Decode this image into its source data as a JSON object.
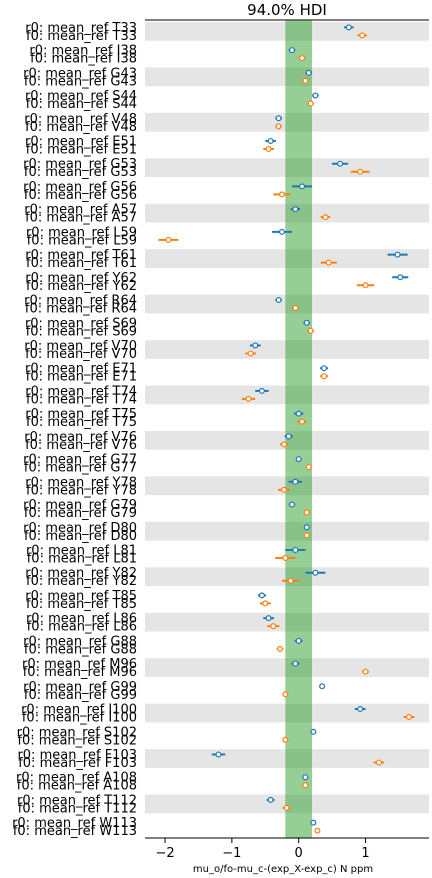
{
  "chart_data": {
    "type": "forest",
    "title": "94.0% HDI",
    "xlabel": "mu_o/fo-mu_c-(exp_X-exp_c) N ppm",
    "xlim": [
      -2.3,
      1.95
    ],
    "xticks": [
      -2,
      -1,
      0,
      1
    ],
    "rope": [
      -0.2,
      0.2
    ],
    "series": [
      {
        "name": "r0",
        "color": "#1f77b4"
      },
      {
        "name": "f0",
        "color": "#ff7f0e"
      }
    ],
    "residues": [
      {
        "name": "T33",
        "r0": [
          0.75,
          0.68,
          0.82
        ],
        "f0": [
          0.95,
          0.88,
          1.02
        ]
      },
      {
        "name": "I38",
        "r0": [
          -0.1,
          -0.15,
          -0.05
        ],
        "f0": [
          0.05,
          0.0,
          0.1
        ]
      },
      {
        "name": "G43",
        "r0": [
          0.15,
          0.1,
          0.2
        ],
        "f0": [
          0.1,
          0.05,
          0.15
        ]
      },
      {
        "name": "S44",
        "r0": [
          0.25,
          0.2,
          0.3
        ],
        "f0": [
          0.18,
          0.13,
          0.23
        ]
      },
      {
        "name": "V48",
        "r0": [
          -0.3,
          -0.35,
          -0.25
        ],
        "f0": [
          -0.3,
          -0.35,
          -0.25
        ]
      },
      {
        "name": "E51",
        "r0": [
          -0.42,
          -0.5,
          -0.34
        ],
        "f0": [
          -0.45,
          -0.53,
          -0.37
        ]
      },
      {
        "name": "G53",
        "r0": [
          0.62,
          0.5,
          0.74
        ],
        "f0": [
          0.92,
          0.78,
          1.06
        ]
      },
      {
        "name": "G56",
        "r0": [
          0.05,
          -0.1,
          0.2
        ],
        "f0": [
          -0.25,
          -0.38,
          -0.12
        ]
      },
      {
        "name": "A57",
        "r0": [
          -0.05,
          -0.12,
          0.02
        ],
        "f0": [
          0.4,
          0.33,
          0.47
        ]
      },
      {
        "name": "L59",
        "r0": [
          -0.25,
          -0.4,
          -0.1
        ],
        "f0": [
          -1.95,
          -2.1,
          -1.8
        ]
      },
      {
        "name": "T61",
        "r0": [
          1.48,
          1.33,
          1.63
        ],
        "f0": [
          0.45,
          0.33,
          0.57
        ]
      },
      {
        "name": "Y62",
        "r0": [
          1.52,
          1.4,
          1.64
        ],
        "f0": [
          1.0,
          0.87,
          1.13
        ]
      },
      {
        "name": "R64",
        "r0": [
          -0.3,
          -0.35,
          -0.25
        ],
        "f0": [
          -0.05,
          -0.1,
          0.0
        ]
      },
      {
        "name": "S69",
        "r0": [
          0.12,
          0.07,
          0.17
        ],
        "f0": [
          0.18,
          0.13,
          0.23
        ]
      },
      {
        "name": "V70",
        "r0": [
          -0.65,
          -0.73,
          -0.57
        ],
        "f0": [
          -0.72,
          -0.8,
          -0.64
        ]
      },
      {
        "name": "E71",
        "r0": [
          0.38,
          0.32,
          0.44
        ],
        "f0": [
          0.38,
          0.32,
          0.44
        ]
      },
      {
        "name": "T74",
        "r0": [
          -0.55,
          -0.65,
          -0.45
        ],
        "f0": [
          -0.75,
          -0.85,
          -0.65
        ]
      },
      {
        "name": "T75",
        "r0": [
          0.0,
          -0.07,
          0.07
        ],
        "f0": [
          0.05,
          -0.02,
          0.12
        ]
      },
      {
        "name": "V76",
        "r0": [
          -0.15,
          -0.21,
          -0.09
        ],
        "f0": [
          -0.22,
          -0.28,
          -0.16
        ]
      },
      {
        "name": "G77",
        "r0": [
          0.0,
          -0.04,
          0.04
        ],
        "f0": [
          0.15,
          0.11,
          0.19
        ]
      },
      {
        "name": "Y78",
        "r0": [
          -0.05,
          -0.15,
          0.05
        ],
        "f0": [
          -0.22,
          -0.31,
          -0.13
        ]
      },
      {
        "name": "G79",
        "r0": [
          -0.1,
          -0.15,
          -0.05
        ],
        "f0": [
          0.12,
          0.07,
          0.17
        ]
      },
      {
        "name": "D80",
        "r0": [
          0.12,
          0.08,
          0.16
        ],
        "f0": [
          0.12,
          0.08,
          0.16
        ]
      },
      {
        "name": "L81",
        "r0": [
          -0.05,
          -0.2,
          0.1
        ],
        "f0": [
          -0.2,
          -0.35,
          -0.05
        ]
      },
      {
        "name": "Y82",
        "r0": [
          0.25,
          0.1,
          0.4
        ],
        "f0": [
          -0.12,
          -0.25,
          0.01
        ]
      },
      {
        "name": "T85",
        "r0": [
          -0.55,
          -0.61,
          -0.49
        ],
        "f0": [
          -0.5,
          -0.58,
          -0.42
        ]
      },
      {
        "name": "L86",
        "r0": [
          -0.45,
          -0.53,
          -0.37
        ],
        "f0": [
          -0.38,
          -0.47,
          -0.29
        ]
      },
      {
        "name": "G88",
        "r0": [
          0.0,
          -0.06,
          0.06
        ],
        "f0": [
          -0.28,
          -0.33,
          -0.23
        ]
      },
      {
        "name": "M96",
        "r0": [
          -0.05,
          -0.11,
          0.01
        ],
        "f0": [
          1.0,
          0.95,
          1.05
        ]
      },
      {
        "name": "G99",
        "r0": [
          0.35,
          0.32,
          0.38
        ],
        "f0": [
          -0.2,
          -0.24,
          -0.16
        ]
      },
      {
        "name": "I100",
        "r0": [
          0.92,
          0.84,
          1.0
        ],
        "f0": [
          1.65,
          1.57,
          1.73
        ]
      },
      {
        "name": "S102",
        "r0": [
          0.22,
          0.19,
          0.25
        ],
        "f0": [
          -0.2,
          -0.24,
          -0.16
        ]
      },
      {
        "name": "F103",
        "r0": [
          -1.2,
          -1.3,
          -1.1
        ],
        "f0": [
          1.2,
          1.12,
          1.28
        ]
      },
      {
        "name": "A108",
        "r0": [
          0.1,
          0.07,
          0.13
        ],
        "f0": [
          0.1,
          0.07,
          0.13
        ]
      },
      {
        "name": "T112",
        "r0": [
          -0.42,
          -0.48,
          -0.36
        ],
        "f0": [
          -0.18,
          -0.24,
          -0.12
        ]
      },
      {
        "name": "W113",
        "r0": [
          0.22,
          0.19,
          0.25
        ],
        "f0": [
          0.28,
          0.25,
          0.31
        ]
      }
    ]
  }
}
